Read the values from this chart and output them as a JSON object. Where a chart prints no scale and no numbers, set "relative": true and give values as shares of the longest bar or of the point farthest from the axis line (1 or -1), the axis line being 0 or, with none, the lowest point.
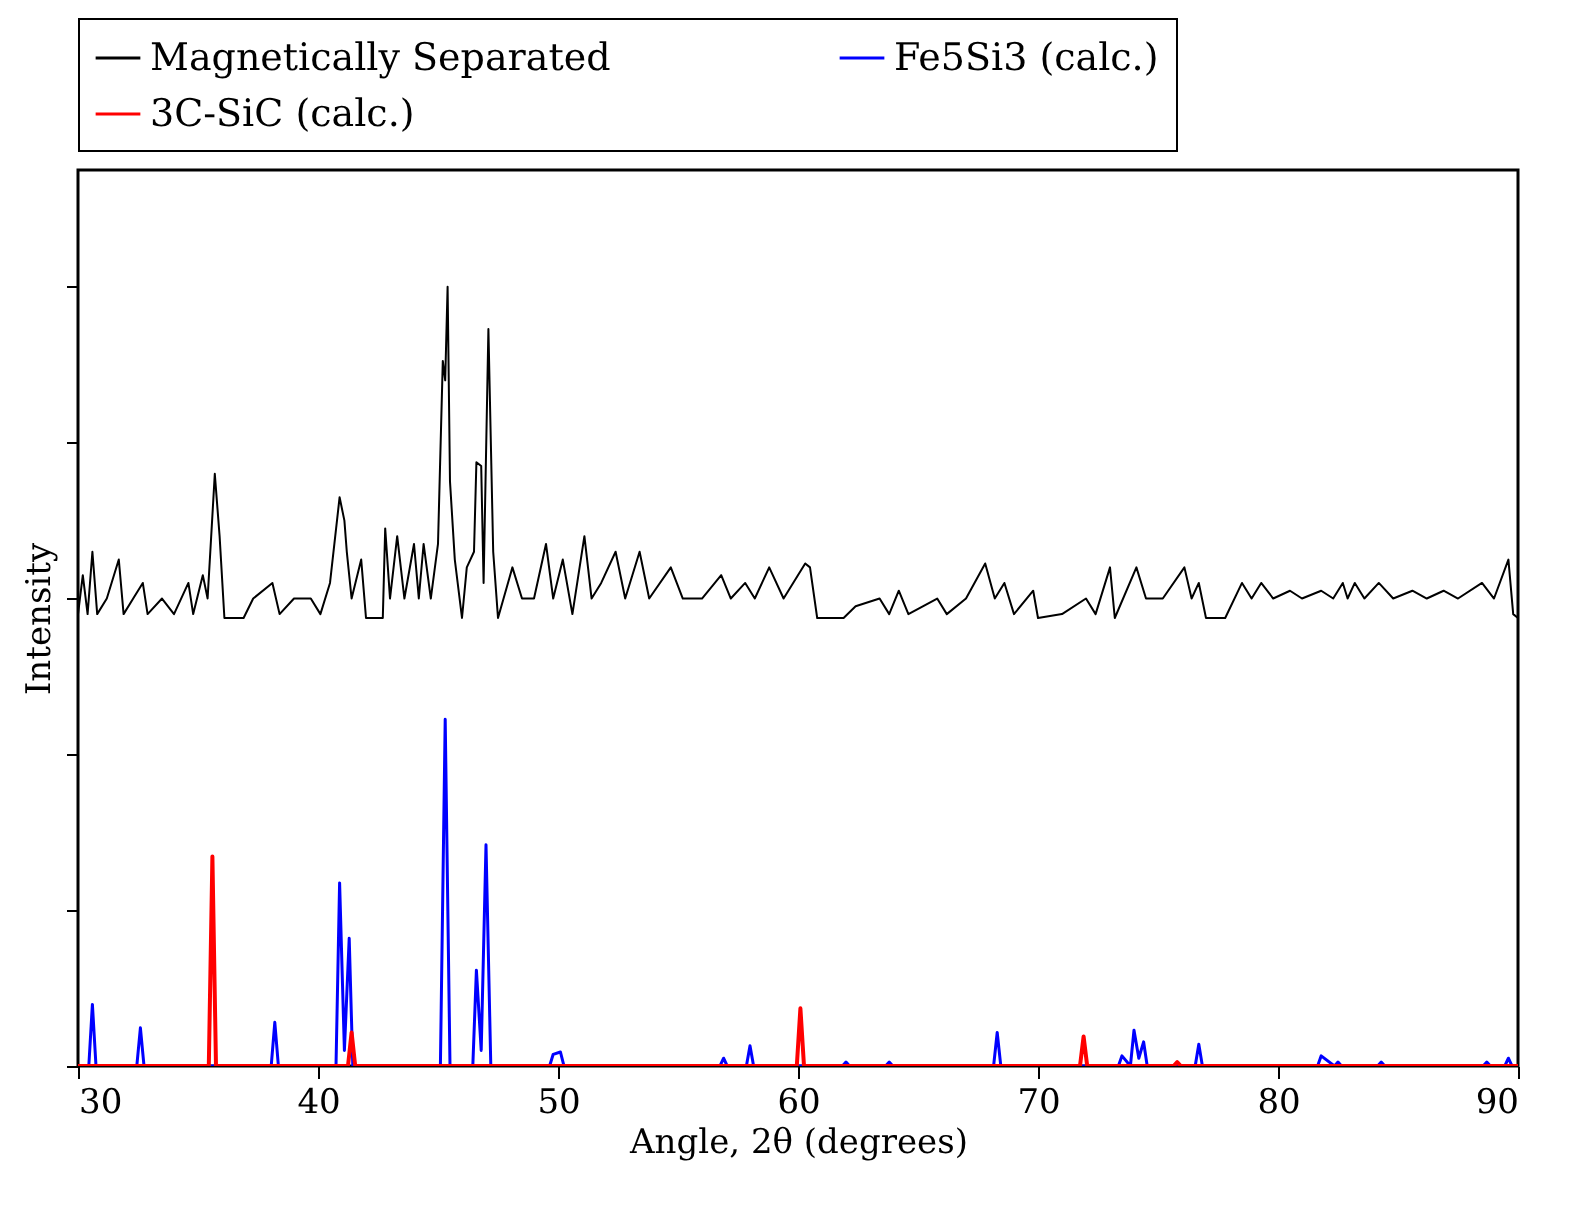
{
  "chart_data": {
    "type": "line",
    "relative": true,
    "xlabel": "Angle, 2θ (degrees)",
    "ylabel": "Intensity",
    "xlim": [
      30,
      90
    ],
    "xticks": [
      30,
      40,
      50,
      60,
      70,
      80,
      90
    ],
    "tick_labels": "x",
    "legend": "top",
    "grid": false,
    "series": [
      {
        "name": "Magnetically Separated",
        "color": "#000000",
        "x": [
          30,
          30.2,
          30.4,
          30.6,
          30.8,
          31.2,
          31.7,
          31.9,
          32.3,
          32.7,
          32.9,
          33.5,
          34.0,
          34.6,
          34.8,
          35.2,
          35.4,
          35.7,
          35.9,
          36.1,
          36.9,
          37.3,
          38.1,
          38.4,
          39.0,
          39.7,
          40.1,
          40.5,
          40.9,
          41.1,
          41.2,
          41.4,
          41.8,
          42.0,
          42.7,
          42.8,
          43.0,
          43.3,
          43.6,
          44.0,
          44.2,
          44.4,
          44.7,
          45.0,
          45.2,
          45.3,
          45.4,
          45.5,
          45.7,
          46.0,
          46.2,
          46.5,
          46.6,
          46.8,
          46.9,
          47.1,
          47.3,
          47.5,
          48.1,
          48.5,
          49.0,
          49.5,
          49.8,
          50.2,
          50.6,
          51.1,
          51.4,
          51.8,
          52.4,
          52.8,
          53.4,
          53.8,
          54.7,
          55.2,
          56.0,
          56.8,
          57.2,
          57.8,
          58.2,
          58.8,
          59.4,
          60.3,
          60.5,
          60.8,
          61.9,
          62.4,
          63.4,
          63.8,
          64.2,
          64.6,
          65.8,
          66.2,
          67.0,
          67.8,
          68.2,
          68.6,
          69.0,
          69.8,
          70.0,
          71.0,
          72.0,
          72.4,
          73.0,
          73.2,
          74.1,
          74.5,
          75.2,
          76.1,
          76.4,
          76.7,
          77.0,
          77.8,
          78.5,
          78.9,
          79.3,
          79.8,
          80.5,
          81.0,
          81.8,
          82.3,
          82.7,
          82.9,
          83.2,
          83.6,
          84.2,
          84.8,
          85.6,
          86.2,
          86.9,
          87.5,
          88.5,
          89.0,
          89.6,
          89.8,
          90
        ],
        "values": [
          0.58,
          0.63,
          0.58,
          0.66,
          0.58,
          0.6,
          0.65,
          0.58,
          0.6,
          0.62,
          0.58,
          0.6,
          0.58,
          0.62,
          0.58,
          0.63,
          0.6,
          0.76,
          0.68,
          0.575,
          0.575,
          0.6,
          0.62,
          0.58,
          0.6,
          0.6,
          0.58,
          0.62,
          0.73,
          0.7,
          0.66,
          0.6,
          0.65,
          0.575,
          0.575,
          0.69,
          0.6,
          0.68,
          0.6,
          0.67,
          0.6,
          0.67,
          0.6,
          0.67,
          0.905,
          0.88,
          1.0,
          0.75,
          0.65,
          0.575,
          0.64,
          0.66,
          0.775,
          0.77,
          0.62,
          0.946,
          0.66,
          0.575,
          0.64,
          0.6,
          0.6,
          0.67,
          0.6,
          0.65,
          0.58,
          0.68,
          0.6,
          0.62,
          0.66,
          0.6,
          0.66,
          0.6,
          0.64,
          0.6,
          0.6,
          0.63,
          0.6,
          0.62,
          0.6,
          0.64,
          0.6,
          0.645,
          0.64,
          0.575,
          0.575,
          0.59,
          0.6,
          0.58,
          0.61,
          0.58,
          0.6,
          0.58,
          0.6,
          0.645,
          0.6,
          0.62,
          0.58,
          0.61,
          0.575,
          0.58,
          0.6,
          0.58,
          0.64,
          0.575,
          0.64,
          0.6,
          0.6,
          0.64,
          0.6,
          0.62,
          0.575,
          0.575,
          0.62,
          0.6,
          0.62,
          0.6,
          0.61,
          0.6,
          0.61,
          0.6,
          0.62,
          0.6,
          0.62,
          0.6,
          0.62,
          0.6,
          0.61,
          0.6,
          0.61,
          0.6,
          0.62,
          0.6,
          0.65,
          0.58,
          0.575
        ]
      },
      {
        "name": "Fe5Si3 (calc.)",
        "color": "#0000ff",
        "x": [
          30,
          30.45,
          30.6,
          30.75,
          32.45,
          32.6,
          32.75,
          38.05,
          38.2,
          38.35,
          40.75,
          40.9,
          41.1,
          41.3,
          41.45,
          45.1,
          45.3,
          45.5,
          46.45,
          46.6,
          46.8,
          47.0,
          47.2,
          49.65,
          49.8,
          50.1,
          50.25,
          56.75,
          56.9,
          57.05,
          57.85,
          58.0,
          58.15,
          61.85,
          62.0,
          62.15,
          63.65,
          63.8,
          63.95,
          68.15,
          68.3,
          68.45,
          73.35,
          73.5,
          73.85,
          74.0,
          74.2,
          74.4,
          74.55,
          76.55,
          76.7,
          76.85,
          81.65,
          81.8,
          82.35,
          82.5,
          82.65,
          84.15,
          84.3,
          84.45,
          88.55,
          88.7,
          88.85,
          89.45,
          89.6,
          89.75,
          90
        ],
        "values": [
          0,
          0,
          0.079,
          0,
          0,
          0.049,
          0,
          0,
          0.056,
          0,
          0,
          0.235,
          0.02,
          0.164,
          0,
          0,
          0.445,
          0,
          0,
          0.123,
          0.02,
          0.284,
          0,
          0,
          0.015,
          0.018,
          0,
          0,
          0.01,
          0,
          0,
          0.026,
          0,
          0,
          0.005,
          0,
          0,
          0.005,
          0,
          0,
          0.043,
          0,
          0,
          0.013,
          0,
          0.046,
          0.01,
          0.031,
          0,
          0,
          0.028,
          0,
          0,
          0.013,
          0,
          0.005,
          0,
          0,
          0.005,
          0,
          0,
          0.005,
          0,
          0,
          0.01,
          0,
          0
        ]
      },
      {
        "name": "3C-SiC (calc.)",
        "color": "#ff0000",
        "x": [
          30,
          35.45,
          35.6,
          35.75,
          41.25,
          41.4,
          41.55,
          59.95,
          60.1,
          60.25,
          71.75,
          71.9,
          72.05,
          75.65,
          75.8,
          75.95,
          90
        ],
        "values": [
          0,
          0,
          0.269,
          0,
          0,
          0.043,
          0,
          0,
          0.074,
          0,
          0,
          0.038,
          0,
          0,
          0.005,
          0,
          0
        ]
      }
    ]
  }
}
